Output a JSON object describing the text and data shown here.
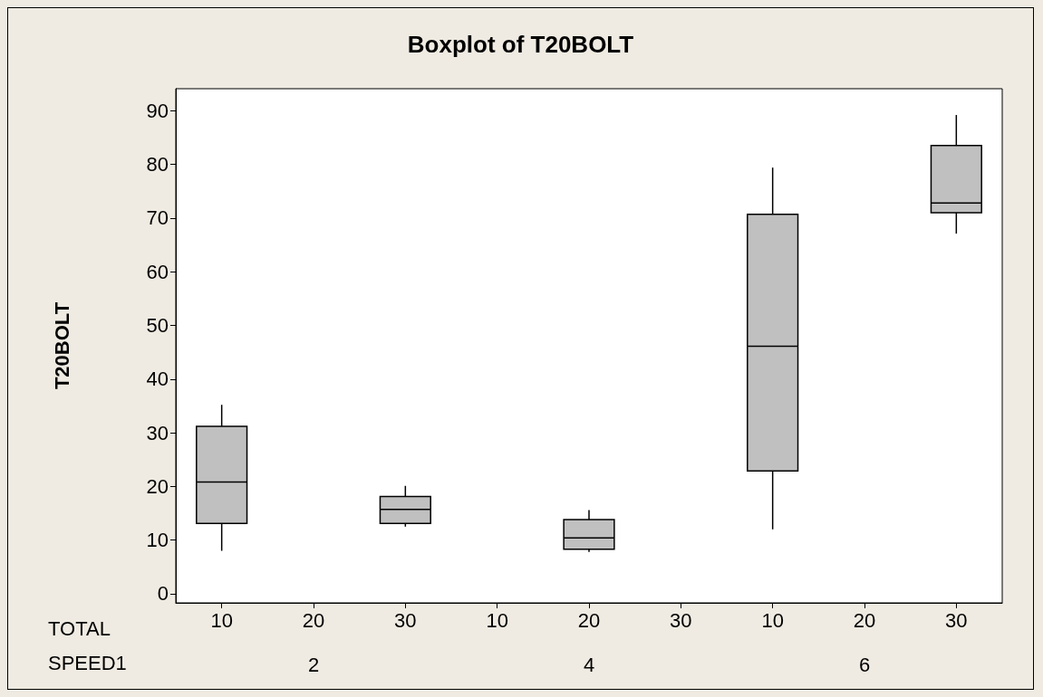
{
  "chart_data": {
    "type": "box",
    "title": "Boxplot of T20BOLT",
    "ylabel": "T20BOLT",
    "categories": [
      "10",
      "20",
      "30",
      "10",
      "20",
      "30",
      "10",
      "20",
      "30"
    ],
    "boxes": [
      {
        "low": 8.0,
        "q1": 13.1,
        "median": 20.8,
        "q3": 31.2,
        "high": 35.2
      },
      null,
      {
        "low": 12.5,
        "q1": 13.1,
        "median": 15.7,
        "q3": 18.1,
        "high": 20.1
      },
      null,
      {
        "low": 7.8,
        "q1": 8.3,
        "median": 10.4,
        "q3": 13.8,
        "high": 15.6
      },
      null,
      {
        "low": 12.0,
        "q1": 22.9,
        "median": 46.1,
        "q3": 70.7,
        "high": 79.4
      },
      null,
      {
        "low": 67.1,
        "q1": 71.0,
        "median": 72.8,
        "q3": 83.5,
        "high": 89.2
      }
    ],
    "color": "#c0c0c0",
    "ylim": [
      -1.7,
      94.1
    ],
    "yticks": [
      0,
      10,
      20,
      30,
      40,
      50,
      60,
      70,
      80,
      90
    ],
    "annotations": [
      "TOTAL",
      "SPEED1",
      "2",
      "4",
      "6"
    ],
    "grid": false
  }
}
